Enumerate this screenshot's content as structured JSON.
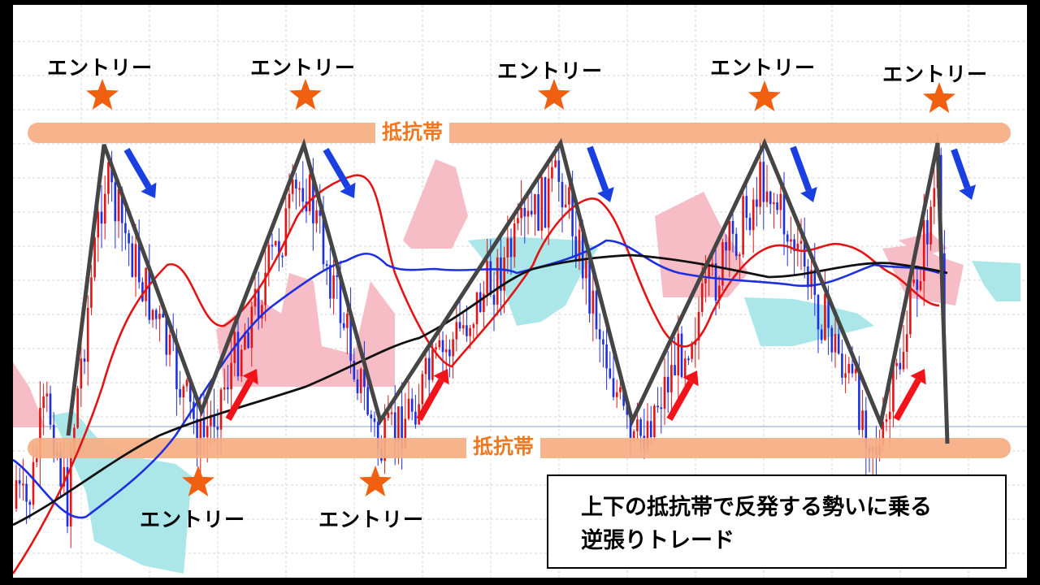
{
  "chart_data": {
    "type": "line",
    "bands": [
      {
        "name": "resistance_top",
        "label": "抵抗帯"
      },
      {
        "name": "resistance_bottom",
        "label": "抵抗帯"
      }
    ],
    "annotations": {
      "entry_label": "エントリー",
      "top_entries": 5,
      "bottom_entries": 2
    },
    "caption": [
      "上下の抵抗帯で反発する勢いに乗る",
      "逆張りトレード"
    ]
  },
  "colors": {
    "band": "#f6ad82",
    "star": "#f06010",
    "zigzag": "#454545",
    "sell_arrow": "#1a3fe0",
    "buy_arrow": "#f0141a",
    "cloud_red": "#f7b9c4",
    "cloud_cyan": "#a7e6e8",
    "ma_red": "#e31414",
    "ma_blue": "#1e2fe0",
    "ma_black": "#111111"
  }
}
